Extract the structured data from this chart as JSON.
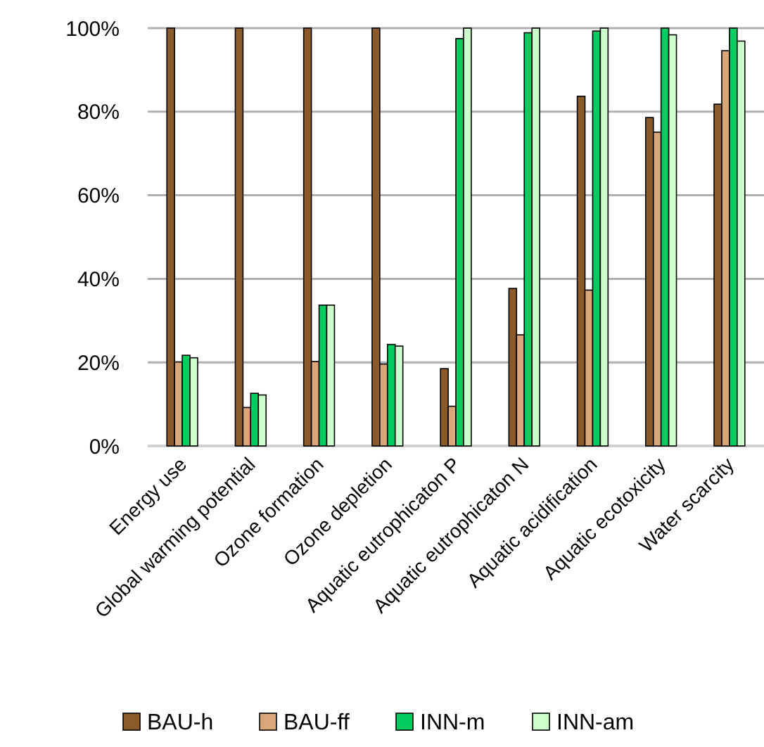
{
  "chart_data": {
    "type": "bar",
    "categories": [
      "Energy use",
      "Global warming potential",
      "Ozone formation",
      "Ozone depletion",
      "Aquatic eutrophicaton P",
      "Aquatic eutrophicaton N",
      "Aquatic acidification",
      "Aquatic ecotoxicity",
      "Water scarcity"
    ],
    "series": [
      {
        "name": "BAU-h",
        "color": "#8b5a2b",
        "values": [
          100,
          100,
          100,
          100,
          18.5,
          37.7,
          83.7,
          78.6,
          81.8
        ]
      },
      {
        "name": "BAU-ff",
        "color": "#d9a77a",
        "values": [
          20.1,
          9.2,
          20.2,
          19.6,
          9.5,
          26.6,
          37.3,
          75.1,
          94.6
        ]
      },
      {
        "name": "INN-m",
        "color": "#00cc60",
        "values": [
          21.7,
          12.6,
          33.7,
          24.3,
          97.5,
          98.9,
          99.3,
          100,
          100
        ]
      },
      {
        "name": "INN-am",
        "color": "#ccffcc",
        "values": [
          21.1,
          12.2,
          33.7,
          23.9,
          100,
          100,
          100,
          98.4,
          96.9
        ]
      }
    ],
    "ylim": [
      0,
      100
    ],
    "yticks": [
      {
        "value": 0,
        "label": "0%"
      },
      {
        "value": 20,
        "label": "20%"
      },
      {
        "value": 40,
        "label": "40%"
      },
      {
        "value": 60,
        "label": "60%"
      },
      {
        "value": 80,
        "label": "80%"
      },
      {
        "value": 100,
        "label": "100%"
      }
    ],
    "grid": "y",
    "legend": "bottom"
  }
}
